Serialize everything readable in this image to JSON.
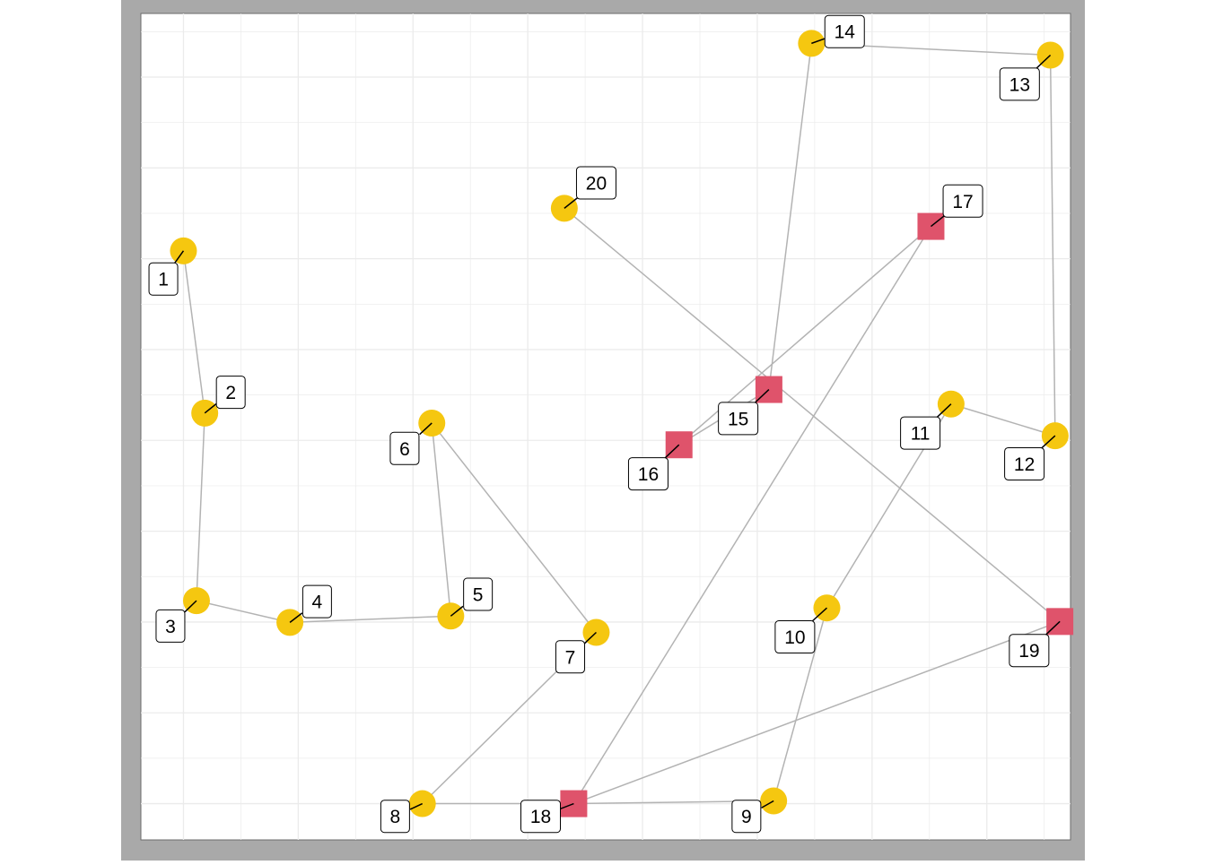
{
  "chart_data": {
    "type": "scatter",
    "title": "",
    "xlabel": "",
    "ylabel": "",
    "xlim": [
      0,
      78.6
    ],
    "ylim": [
      0,
      91.2
    ],
    "grid": true,
    "legend": "none",
    "colors": {
      "panel_border": "#a9a9a9",
      "plot_background": "#ffffff",
      "grid": "#ebebeb",
      "path": "#b3b3b3",
      "circle": "#f5c710",
      "square": "#df536b",
      "label_border": "#000000",
      "leader": "#000000"
    },
    "points": [
      {
        "id": "1",
        "label": "1",
        "x": 3.6,
        "y": 65.0,
        "shape": "circle",
        "label_dx": -1.7,
        "label_dy": -3.1
      },
      {
        "id": "2",
        "label": "2",
        "x": 5.4,
        "y": 47.1,
        "shape": "circle",
        "label_dx": 2.2,
        "label_dy": 2.3
      },
      {
        "id": "3",
        "label": "3",
        "x": 4.7,
        "y": 26.4,
        "shape": "circle",
        "label_dx": -2.2,
        "label_dy": -2.8
      },
      {
        "id": "4",
        "label": "4",
        "x": 12.6,
        "y": 24.0,
        "shape": "circle",
        "label_dx": 2.3,
        "label_dy": 2.3
      },
      {
        "id": "5",
        "label": "5",
        "x": 26.2,
        "y": 24.7,
        "shape": "circle",
        "label_dx": 2.3,
        "label_dy": 2.4
      },
      {
        "id": "6",
        "label": "6",
        "x": 24.6,
        "y": 46.0,
        "shape": "circle",
        "label_dx": -2.3,
        "label_dy": -2.8
      },
      {
        "id": "7",
        "label": "7",
        "x": 38.5,
        "y": 22.9,
        "shape": "circle",
        "label_dx": -2.2,
        "label_dy": -2.7
      },
      {
        "id": "8",
        "label": "8",
        "x": 23.8,
        "y": 4.0,
        "shape": "circle",
        "label_dx": -2.3,
        "label_dy": -1.4
      },
      {
        "id": "9",
        "label": "9",
        "x": 53.5,
        "y": 4.3,
        "shape": "circle",
        "label_dx": -2.3,
        "label_dy": -1.7
      },
      {
        "id": "10",
        "label": "10",
        "x": 58.0,
        "y": 25.6,
        "shape": "circle",
        "label_dx": -2.7,
        "label_dy": -3.2
      },
      {
        "id": "11",
        "label": "11",
        "x": 68.5,
        "y": 48.1,
        "shape": "circle",
        "label_dx": -2.6,
        "label_dy": -3.2
      },
      {
        "id": "12",
        "label": "12",
        "x": 77.3,
        "y": 44.6,
        "shape": "circle",
        "label_dx": -2.6,
        "label_dy": -3.1
      },
      {
        "id": "13",
        "label": "13",
        "x": 76.9,
        "y": 86.6,
        "shape": "circle",
        "label_dx": -2.6,
        "label_dy": -3.2
      },
      {
        "id": "14",
        "label": "14",
        "x": 56.7,
        "y": 87.9,
        "shape": "circle",
        "label_dx": 2.8,
        "label_dy": 1.3
      },
      {
        "id": "15",
        "label": "15",
        "x": 53.1,
        "y": 49.7,
        "shape": "square",
        "label_dx": -2.6,
        "label_dy": -3.2
      },
      {
        "id": "16",
        "label": "16",
        "x": 45.5,
        "y": 43.6,
        "shape": "square",
        "label_dx": -2.6,
        "label_dy": -3.2
      },
      {
        "id": "17",
        "label": "17",
        "x": 66.8,
        "y": 67.7,
        "shape": "square",
        "label_dx": 2.7,
        "label_dy": 2.8
      },
      {
        "id": "18",
        "label": "18",
        "x": 36.6,
        "y": 4.0,
        "shape": "square",
        "label_dx": -2.8,
        "label_dy": -1.4
      },
      {
        "id": "19",
        "label": "19",
        "x": 77.7,
        "y": 24.1,
        "shape": "square",
        "label_dx": -2.6,
        "label_dy": -3.2
      },
      {
        "id": "20",
        "label": "20",
        "x": 35.8,
        "y": 69.7,
        "shape": "circle",
        "label_dx": 2.7,
        "label_dy": 2.8
      }
    ],
    "path_order": [
      "1",
      "2",
      "3",
      "4",
      "5",
      "6",
      "7",
      "8",
      "18",
      "9",
      "10",
      "11",
      "12",
      "13",
      "14",
      "15",
      "16",
      "17",
      "18",
      "19",
      "20"
    ]
  }
}
